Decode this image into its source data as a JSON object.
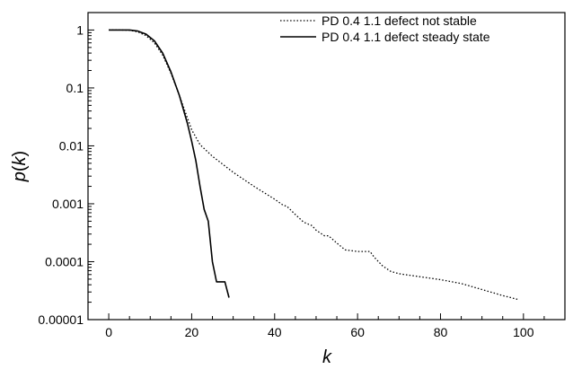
{
  "chart_data": {
    "type": "line",
    "title": "",
    "xlabel": "k",
    "ylabel": "p(k)",
    "xlim": [
      -5,
      110
    ],
    "ylim": [
      1e-05,
      2
    ],
    "yscale": "log",
    "grid": false,
    "legend_position": "top-right",
    "x_ticks": [
      0,
      20,
      40,
      60,
      80,
      100
    ],
    "x_tick_labels": [
      "0",
      "20",
      "40",
      "60",
      "80",
      "100"
    ],
    "y_ticks": [
      1,
      0.1,
      0.01,
      0.001,
      0.0001,
      1e-05
    ],
    "y_tick_labels": [
      "1",
      "0.1",
      "0.01",
      "0.001",
      "0.0001",
      "0.00001"
    ],
    "series": [
      {
        "name": "PD 0.4 1.1 defect not stable",
        "style": "dotted",
        "color": "#000000",
        "x": [
          0,
          3,
          5,
          7,
          9,
          11,
          13,
          15,
          17,
          19,
          20,
          22,
          25,
          30,
          35,
          40,
          42,
          43,
          45,
          47,
          49,
          50,
          52,
          53,
          55,
          57,
          60,
          63,
          64,
          66,
          68,
          70,
          75,
          80,
          85,
          90,
          95,
          99
        ],
        "y": [
          1,
          1,
          0.99,
          0.93,
          0.8,
          0.6,
          0.37,
          0.18,
          0.075,
          0.03,
          0.019,
          0.0105,
          0.0066,
          0.0035,
          0.002,
          0.0012,
          0.00095,
          0.0009,
          0.00065,
          0.00048,
          0.00042,
          0.00035,
          0.00028,
          0.00028,
          0.00021,
          0.00016,
          0.00015,
          0.00015,
          0.00012,
          8.5e-05,
          6.8e-05,
          6.2e-05,
          5.5e-05,
          4.9e-05,
          4.2e-05,
          3.3e-05,
          2.6e-05,
          2.2e-05
        ]
      },
      {
        "name": "PD 0.4 1.1 defect steady state",
        "style": "solid",
        "color": "#000000",
        "x": [
          0,
          3,
          5,
          7,
          9,
          11,
          13,
          15,
          17,
          19,
          20,
          21,
          22,
          23,
          24,
          25,
          26,
          27,
          28,
          29
        ],
        "y": [
          1,
          1,
          1,
          0.96,
          0.85,
          0.65,
          0.4,
          0.19,
          0.075,
          0.024,
          0.012,
          0.0055,
          0.002,
          0.0008,
          0.0005,
          0.0001,
          4.5e-05,
          4.5e-05,
          4.5e-05,
          2.4e-05
        ]
      }
    ]
  }
}
